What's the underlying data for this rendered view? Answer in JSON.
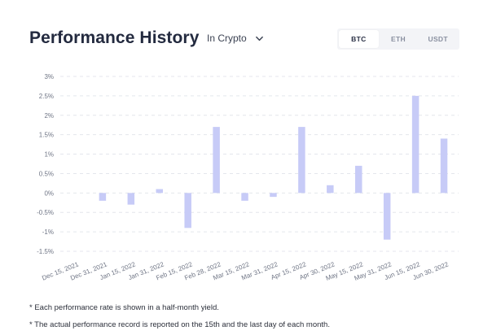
{
  "header": {
    "title": "Performance History",
    "unit_selector": {
      "selected": "In Crypto",
      "icon": "chevron-down-icon"
    }
  },
  "tabs": [
    {
      "label": "BTC",
      "active": true
    },
    {
      "label": "ETH",
      "active": false
    },
    {
      "label": "USDT",
      "active": false
    }
  ],
  "notes": [
    "* Each performance rate is shown in a half-month yield.",
    "* The actual performance record is reported on the 15th and the last day of each month."
  ],
  "colors": {
    "bar": "#c7cbf7",
    "grid": "#e4e6ec",
    "tick_text": "#6f7585"
  },
  "chart_data": {
    "type": "bar",
    "categories": [
      "Dec 15, 2021",
      "Dec 31, 2021",
      "Jan 15, 2022",
      "Jan 31, 2022",
      "Feb 15, 2022",
      "Feb 28, 2022",
      "Mar 15, 2022",
      "Mar 31, 2022",
      "Apr 15, 2022",
      "Apr 30, 2022",
      "May 15, 2022",
      "May 31, 2022",
      "Jun 15, 2022",
      "Jun 30, 2022"
    ],
    "values": [
      0,
      -0.2,
      -0.3,
      0.1,
      -0.9,
      1.7,
      -0.2,
      -0.1,
      1.7,
      0.2,
      0.7,
      -1.2,
      2.5,
      1.4
    ],
    "y_ticks": [
      3,
      2.5,
      2,
      1.5,
      1,
      0.5,
      0,
      -0.5,
      -1,
      -1.5
    ],
    "y_tick_labels": [
      "3%",
      "2.5%",
      "2%",
      "1.5%",
      "1%",
      "0.5%",
      "0%",
      "-0.5%",
      "-1%",
      "-1.5%"
    ],
    "ylim": [
      -1.5,
      3
    ],
    "grid": true,
    "legend": "none",
    "title": "",
    "xlabel": "",
    "ylabel": ""
  }
}
